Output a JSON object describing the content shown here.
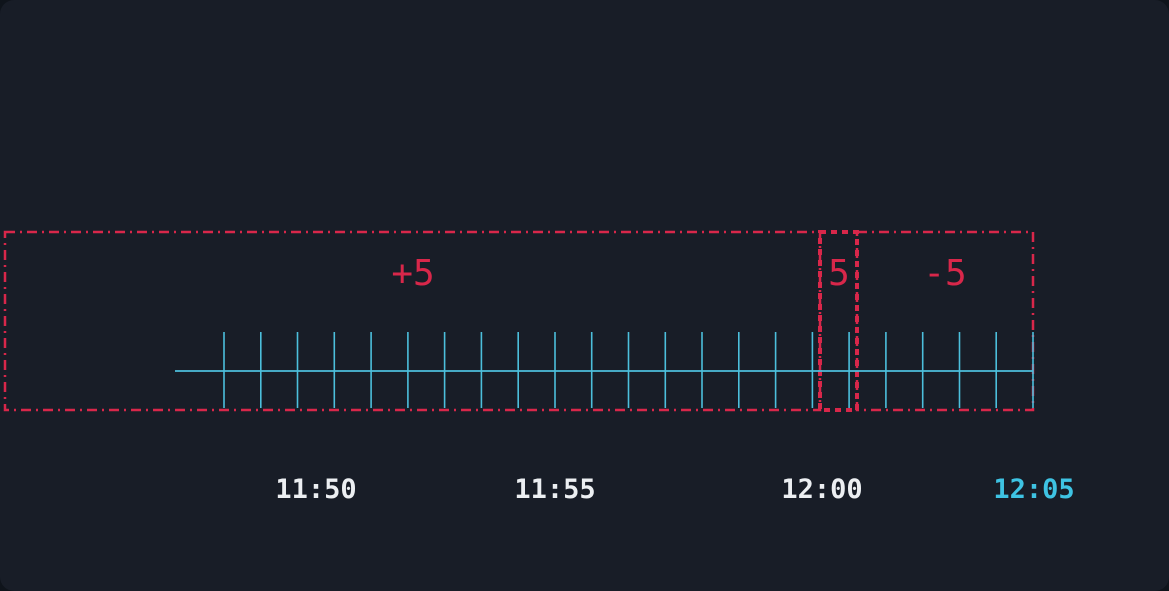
{
  "diagram": {
    "regions": [
      {
        "id": "plus",
        "label": "+5"
      },
      {
        "id": "mid",
        "label": "5"
      },
      {
        "id": "minus",
        "label": "-5"
      }
    ],
    "time_labels": [
      {
        "text": "11:50",
        "current": false
      },
      {
        "text": "11:55",
        "current": false
      },
      {
        "text": "12:00",
        "current": false
      },
      {
        "text": "12:05",
        "current": true
      }
    ],
    "tick_count": 23,
    "colors": {
      "background": "#181d27",
      "region_stroke": "#d8274a",
      "axis": "#4cbfdc",
      "label": "#eceff2",
      "current_label": "#3ec3e3"
    }
  }
}
